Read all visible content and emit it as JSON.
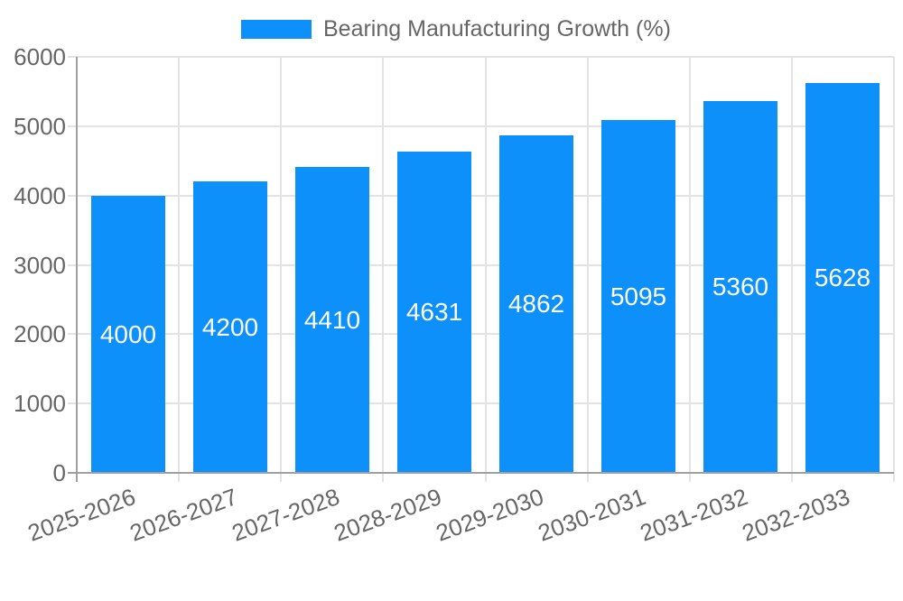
{
  "legend": {
    "label": "Bearing Manufacturing Growth (%)"
  },
  "chart_data": {
    "type": "bar",
    "title": "Bearing Manufacturing Growth (%)",
    "series_label": "Bearing Manufacturing Growth (%)",
    "categories": [
      "2025-2026",
      "2026-2027",
      "2027-2028",
      "2028-2029",
      "2029-2030",
      "2030-2031",
      "2031-2032",
      "2032-2033"
    ],
    "values": [
      4000,
      4200,
      4410,
      4631,
      4862,
      5095,
      5360,
      5628
    ],
    "bar_value_labels": [
      "4000",
      "4200",
      "4410",
      "4631",
      "4862",
      "5095",
      "5360",
      "5628"
    ],
    "xlabel": "",
    "ylabel": "",
    "ylim": [
      0,
      6000
    ],
    "yticks": [
      0,
      1000,
      2000,
      3000,
      4000,
      5000,
      6000
    ],
    "grid": true,
    "legend_position": "top-center",
    "x_label_rotation_deg": -20,
    "colors": {
      "bar": "#0e90fb",
      "value_label": "#ffffff",
      "tick_text": "#666666",
      "grid_line": "#e3e3e3",
      "axis_line": "#a0a0a0",
      "background": "#ffffff"
    }
  }
}
